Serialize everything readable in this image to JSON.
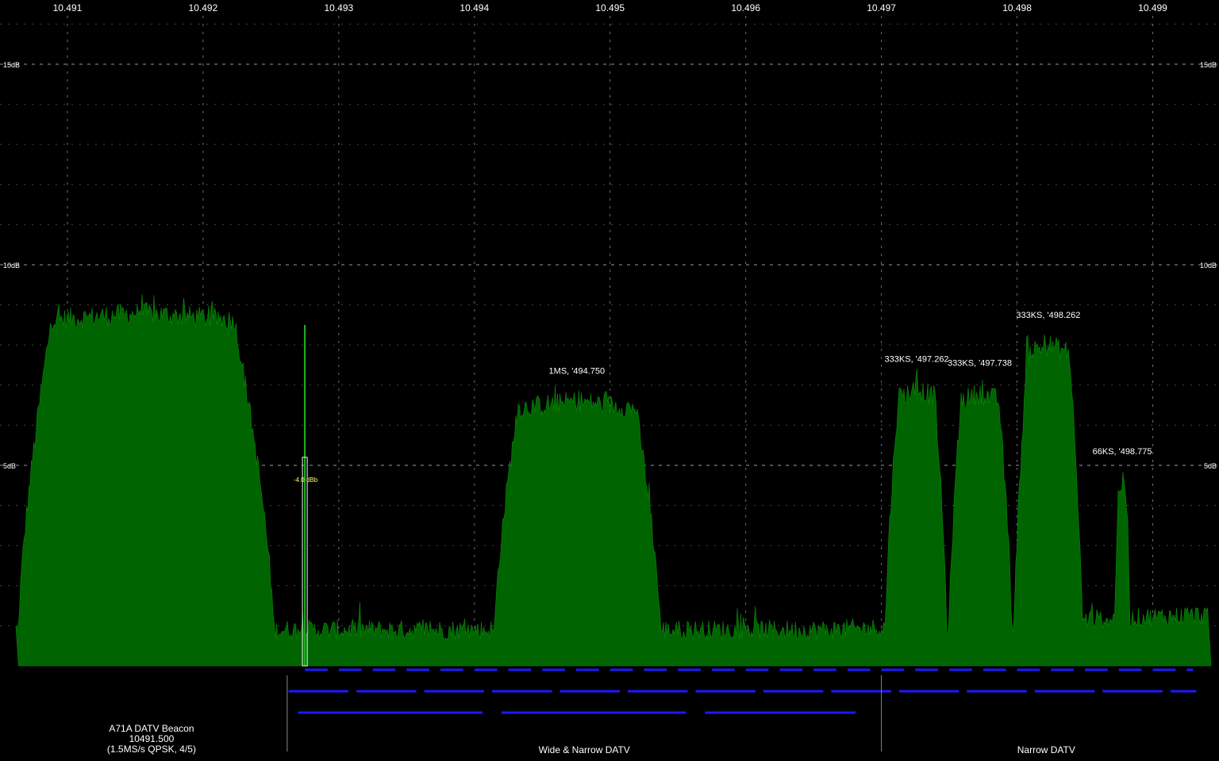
{
  "chart_data": {
    "type": "area",
    "title": "",
    "xlabel": "",
    "ylabel": "",
    "x_ticks": [
      "10.491",
      "10.492",
      "10.493",
      "10.494",
      "10.495",
      "10.496",
      "10.497",
      "10.498",
      "10.499"
    ],
    "x_tick_values": [
      10491,
      10492,
      10493,
      10494,
      10495,
      10496,
      10497,
      10498,
      10499
    ],
    "xlim": [
      10490.62,
      10499.43
    ],
    "y_ticks": [
      "15dB",
      "10dB",
      "5dB"
    ],
    "y_tick_values": [
      15,
      10,
      5
    ],
    "ylim": [
      0,
      16.6
    ],
    "grid": true,
    "colors": {
      "fill": "#006400",
      "stroke": "#0a8a0a",
      "grid": "#6e6e6e",
      "text": "#ffffff",
      "marker": "#ffff66",
      "bandplan": "#1a1aff"
    },
    "noise_floor_db": 0.9,
    "signals": [
      {
        "label": "",
        "start": 10490.64,
        "plateau_start": 10490.89,
        "plateau_end": 10492.22,
        "end": 10492.52,
        "peak_db": 9.4
      },
      {
        "label": "1MS, '494.750",
        "start": 10494.15,
        "plateau_start": 10494.33,
        "plateau_end": 10495.18,
        "end": 10495.37,
        "peak_db": 7.2
      },
      {
        "label": "333KS, '497.262",
        "start": 10497.03,
        "plateau_start": 10497.13,
        "plateau_end": 10497.39,
        "end": 10497.48,
        "peak_db": 7.5
      },
      {
        "label": "333KS, '497.738",
        "start": 10497.5,
        "plateau_start": 10497.59,
        "plateau_end": 10497.86,
        "end": 10497.96,
        "peak_db": 7.4
      },
      {
        "label": "333KS, '498.262",
        "start": 10497.98,
        "plateau_start": 10498.08,
        "plateau_end": 10498.38,
        "end": 10498.48,
        "peak_db": 8.6
      },
      {
        "label": "66KS, '498.775",
        "start": 10498.72,
        "plateau_start": 10498.75,
        "plateau_end": 10498.8,
        "end": 10498.83,
        "peak_db": 5.2
      }
    ],
    "marker": {
      "label": "-4.0 dBb",
      "freq": 10492.75,
      "db_carrier": 8.5,
      "db_box": 5.2
    },
    "bandplan": {
      "segments": [
        {
          "label": "A71A DATV Beacon",
          "sublabel": "10491.500",
          "sublabel2": "(1.5MS/s QPSK, 4/5)",
          "start": 10490.62,
          "end": 10492.62
        },
        {
          "label": "Wide & Narrow DATV",
          "start": 10492.62,
          "end": 10497.0
        },
        {
          "label": "Narrow DATV",
          "start": 10497.0,
          "end": 10499.43
        }
      ],
      "row1_channels_khz": 250,
      "row2_channels_khz": 500,
      "row3_channels_khz": 1500,
      "row1_start": 10492.75,
      "row2_start": 10492.63,
      "row3_start": 10492.7,
      "row3_end": 10496.95,
      "rows_end": 10499.38
    }
  }
}
